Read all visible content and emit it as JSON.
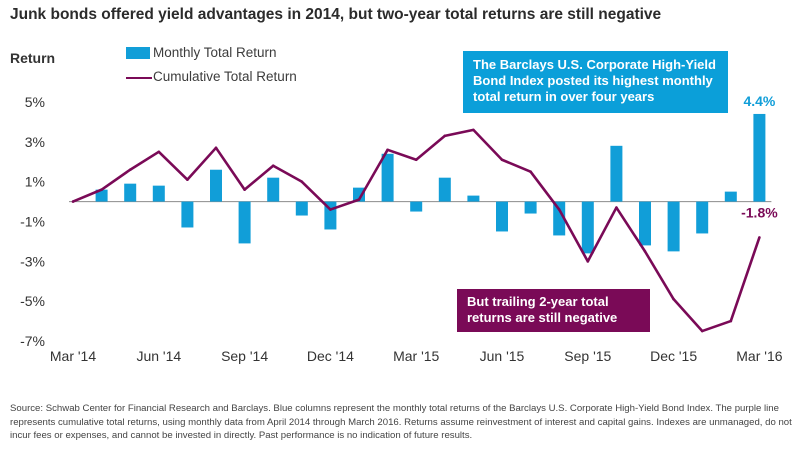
{
  "title": "Junk bonds offered yield advantages in 2014, but two-year total returns are still negative",
  "source": "Source: Schwab Center for Financial Research and Barclays. Blue columns represent the monthly total returns of the Barclays U.S. Corporate High-Yield Bond Index. The purple line represents cumulative total returns, using monthly data from April 2014 through March 2016. Returns assume reinvestment of interest and capital gains. Indexes are unmanaged, do not incur fees or expenses, and cannot be invested in directly. Past performance is no indication of future results.",
  "colors": {
    "bar": "#119ed8",
    "line": "#7a0a57",
    "label_blue": "#119ed8",
    "label_purple": "#7a0a57"
  },
  "chart_data": {
    "type": "bar+line",
    "title": "Junk bonds offered yield advantages in 2014, but two-year total returns are still negative",
    "ylabel": "Return",
    "xlabel": "",
    "ylim": [
      -7,
      5
    ],
    "yticks": [
      5,
      3,
      1,
      -1,
      -3,
      -5,
      -7
    ],
    "ytick_labels": [
      "5%",
      "3%",
      "1%",
      "-1%",
      "-3%",
      "-5%",
      "-7%"
    ],
    "x_tick_labels": [
      {
        "index": 0,
        "label": "Mar '14"
      },
      {
        "index": 3,
        "label": "Jun '14"
      },
      {
        "index": 6,
        "label": "Sep '14"
      },
      {
        "index": 9,
        "label": "Dec '14"
      },
      {
        "index": 12,
        "label": "Mar '15"
      },
      {
        "index": 15,
        "label": "Jun '15"
      },
      {
        "index": 18,
        "label": "Sep '15"
      },
      {
        "index": 21,
        "label": "Dec '15"
      },
      {
        "index": 24,
        "label": "Mar '16"
      }
    ],
    "months": [
      "Mar '14",
      "Apr '14",
      "May '14",
      "Jun '14",
      "Jul '14",
      "Aug '14",
      "Sep '14",
      "Oct '14",
      "Nov '14",
      "Dec '14",
      "Jan '15",
      "Feb '15",
      "Mar '15",
      "Apr '15",
      "May '15",
      "Jun '15",
      "Jul '15",
      "Aug '15",
      "Sep '15",
      "Oct '15",
      "Nov '15",
      "Dec '15",
      "Jan '16",
      "Feb '16",
      "Mar '16"
    ],
    "series": [
      {
        "name": "Monthly Total Return",
        "type": "bar",
        "values": [
          null,
          0.6,
          0.9,
          0.8,
          -1.3,
          1.6,
          -2.1,
          1.2,
          -0.7,
          -1.4,
          0.7,
          2.4,
          -0.5,
          1.2,
          0.3,
          -1.5,
          -0.6,
          -1.7,
          -2.6,
          2.8,
          -2.2,
          -2.5,
          -1.6,
          0.5,
          4.4
        ]
      },
      {
        "name": "Cumulative Total Return",
        "type": "line",
        "values": [
          0.0,
          0.6,
          1.6,
          2.5,
          1.1,
          2.7,
          0.6,
          1.8,
          1.0,
          -0.4,
          0.1,
          2.6,
          2.1,
          3.3,
          3.6,
          2.1,
          1.5,
          -0.4,
          -3.0,
          -0.3,
          -2.5,
          -4.9,
          -6.5,
          -6.0,
          -1.8
        ]
      }
    ],
    "data_labels": [
      {
        "series": "Monthly Total Return",
        "index": 24,
        "text": "4.4%"
      },
      {
        "series": "Cumulative Total Return",
        "index": 24,
        "text": "-1.8%"
      }
    ],
    "annotations": [
      "The Barclays U.S. Corporate High-Yield Bond Index posted its highest monthly total return in over four years",
      "But trailing 2-year total returns are still negative"
    ],
    "legend": [
      "Monthly Total Return",
      "Cumulative Total Return"
    ],
    "legend_position": "top-left",
    "grid": false
  }
}
